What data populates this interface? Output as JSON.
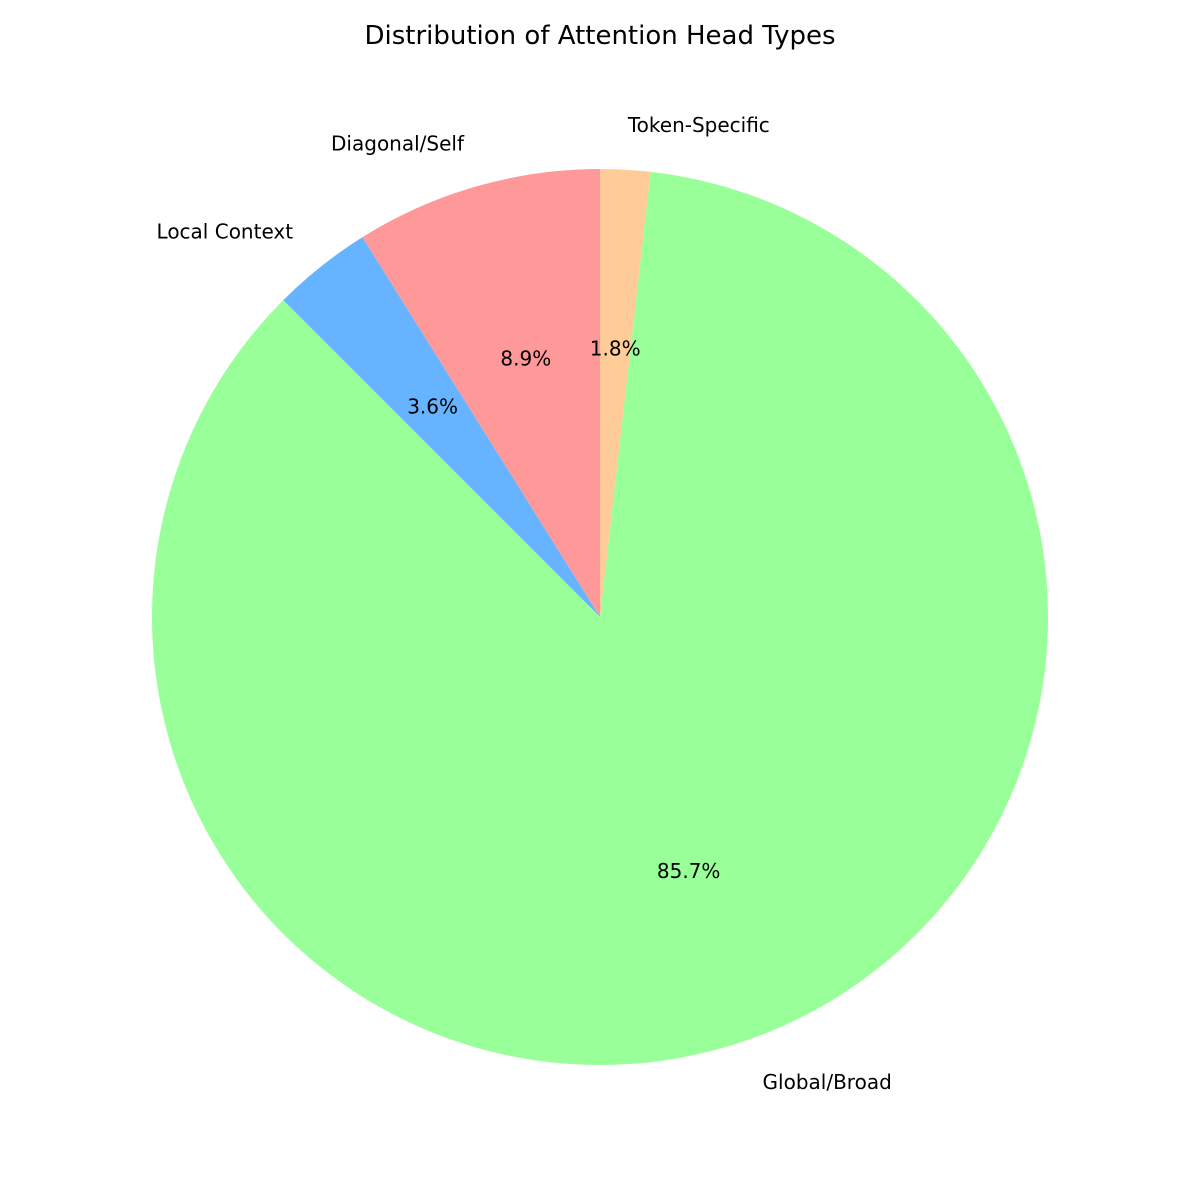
{
  "chart_data": {
    "type": "pie",
    "title": "Distribution of Attention Head Types",
    "start_angle_deg": 90,
    "direction": "counterclockwise",
    "slices": [
      {
        "label": "Diagonal/Self",
        "value": 8.9,
        "pct_label": "8.9%",
        "color": "#ff9999"
      },
      {
        "label": "Local Context",
        "value": 3.6,
        "pct_label": "3.6%",
        "color": "#66b3ff"
      },
      {
        "label": "Global/Broad",
        "value": 85.7,
        "pct_label": "85.7%",
        "color": "#99ff99"
      },
      {
        "label": "Token-Specific",
        "value": 1.8,
        "pct_label": "1.8%",
        "color": "#ffcc99"
      }
    ]
  }
}
